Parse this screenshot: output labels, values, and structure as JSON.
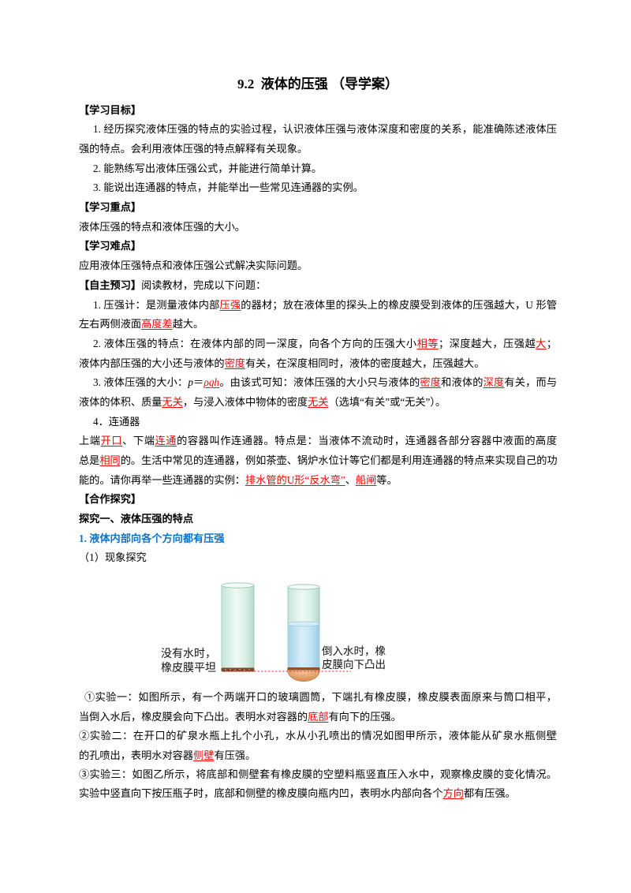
{
  "title": "9.2  液体的压强 （导学案）",
  "colors": {
    "answer_red": "#ff0000",
    "heading_blue": "#0b74c8"
  },
  "goals": {
    "heading": "【学习目标】",
    "item1": [
      "1. 经历探究液体压强的特点的实验过程，认识液体压强与液体深度和密度的关系，能准确陈述液体压",
      "强的特点。会利用液体压强的特点解释有关现象。"
    ],
    "item2": "2. 能熟练写出液体压强公式，并能进行简单计算。",
    "item3": "3. 能说出连通器的特点，并能举出一些常见连通器的实例。"
  },
  "key_points": {
    "heading": "【学习重点】",
    "text": "液体压强的特点和液体压强的大小。"
  },
  "difficulties": {
    "heading": "【学习难点】",
    "text": "应用液体压强特点和液体压强公式解决实际问题。"
  },
  "preview": {
    "heading": "【自主预习】",
    "intro": "阅读教材，完成以下问题：",
    "q1": [
      [
        "1. 压强计：是测量液体内部",
        "压强",
        "的器材；放在液体里的探头上的橡皮膜受到液体的压强越大，U 形管"
      ],
      [
        "左右两侧液面",
        "高度差",
        "越大。"
      ]
    ],
    "q2": [
      [
        "2.  液体压强的特点：在液体内部的同一深度，向各个方向的压强大小",
        "相等",
        "；深度越大，压强越",
        "大",
        "；"
      ],
      [
        "液体内部压强的大小还与液体的",
        "密度",
        "有关，在深度相同时，液体的密度越大，压强越大。"
      ]
    ],
    "q3": [
      [
        "3. 液体压强的大小：",
        "p",
        "＝",
        "ρgh",
        "。由该式可知：液体压强的大小只与液体的",
        "密度",
        "和液体的",
        "深度",
        "有关，而与"
      ],
      [
        "液体的体积、质量",
        "无关",
        "，与浸入液体中物体的密度",
        "无关",
        "（选填“有关”或“无关”）。"
      ]
    ],
    "q4_title": "4．连通器",
    "q4": [
      [
        "上端",
        "开口",
        "、下端",
        "连通",
        "的容器叫作连通器。特点是：当液体不流动时，连通器各部分容器中液面的高度"
      ],
      [
        "总是",
        "相同",
        "的。生活中常见的连通器，例如茶壶、锅炉水位计等它们都是利用连通器的特点来实现自己的功"
      ],
      [
        "能的。请你再举一些连通器的实例：",
        "排水管的U形“反水弯”",
        "、",
        "船闸",
        "等。"
      ]
    ]
  },
  "inquiry": {
    "heading": "【合作探究】",
    "part1_title": "探究一、液体压强的特点",
    "sub1_title": "1. 液体内部向各个方向都有压强",
    "sub1_item": "（1）现象探究",
    "figure": {
      "left_label": [
        "没有水时，",
        "橡皮膜平坦"
      ],
      "right_label": [
        "倒入水时，橡",
        "皮膜向下凸出"
      ]
    },
    "exp1": [
      [
        "①实验一：如图所示，有一个两端开口的玻璃圆筒，下端扎有橡皮膜，橡皮膜表面原来与筒口相平，"
      ],
      [
        "当倒入水后，橡皮膜会向下凸出。表明水对容器的",
        "底部",
        "有向下的压强。"
      ]
    ],
    "exp2": [
      [
        "②实验二：在开口的矿泉水瓶上扎个小孔，水从小孔喷出的情况如图甲所示，液体能从矿泉水瓶侧壁"
      ],
      [
        "的孔喷出，表明水对容器",
        "侧壁",
        "有压强。"
      ]
    ],
    "exp3": [
      [
        "③实验三：如图乙所示，将底部和侧壁套有橡皮膜的空塑料瓶竖直压入水中，观察橡皮膜的变化情况。"
      ],
      [
        "实验中竖直向下按压瓶子时，底部和侧壁的橡皮膜向瓶内凹，表明水内部向各个",
        "方向",
        "都有压强。"
      ]
    ]
  }
}
